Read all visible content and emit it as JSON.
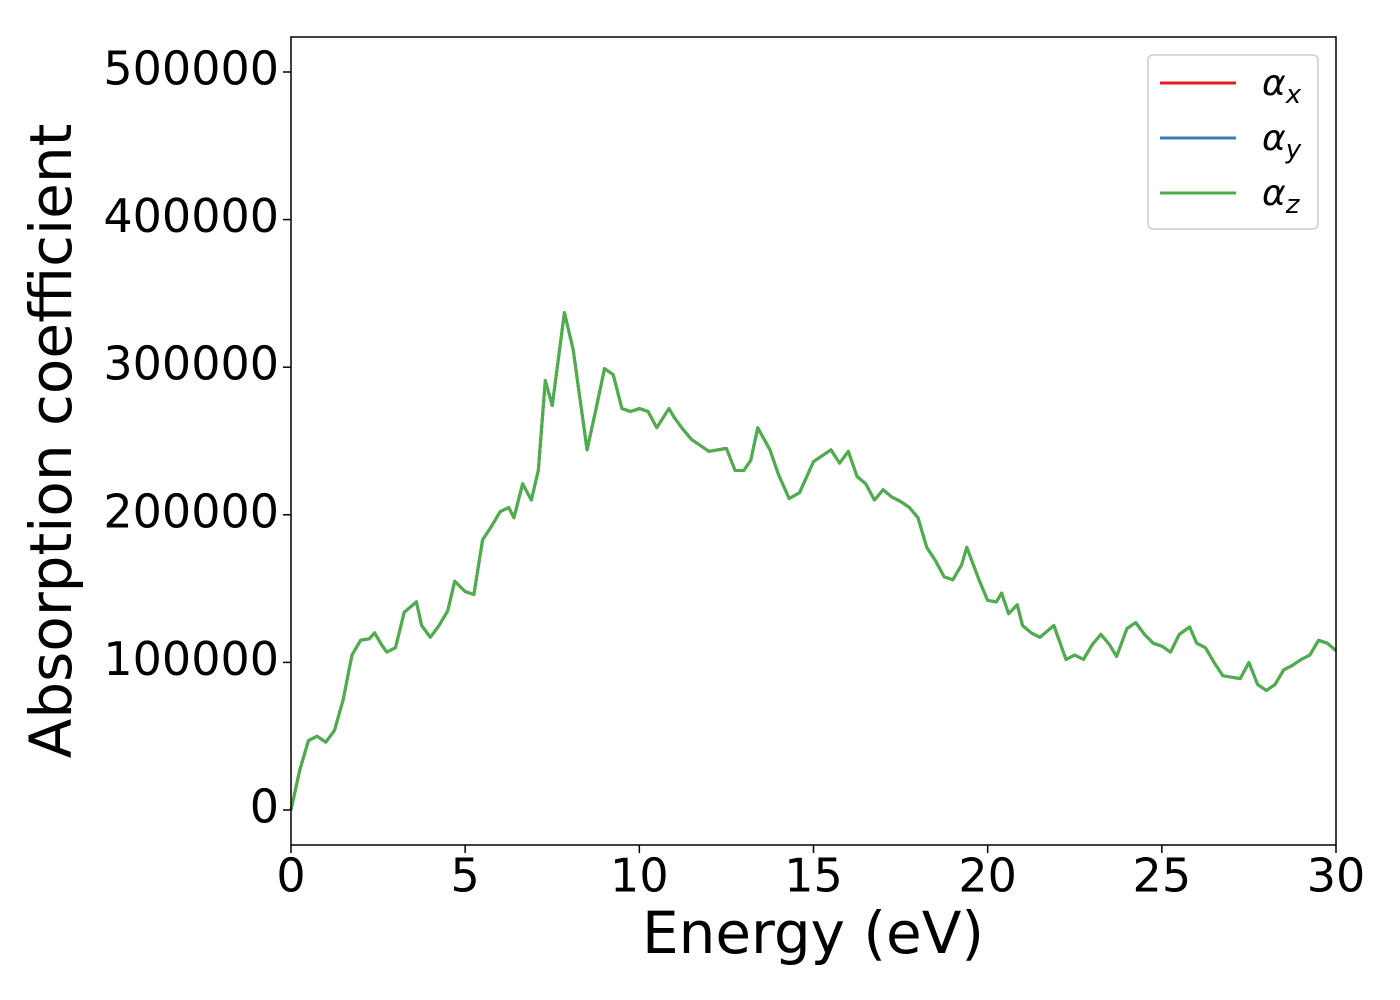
{
  "chart_data": {
    "type": "line",
    "xlabel": "Energy (eV)",
    "ylabel": "Absorption coefficient",
    "x": [
      0,
      0.25,
      0.5,
      0.75,
      1,
      1.25,
      1.5,
      1.75,
      2,
      2.25,
      2.4,
      2.6,
      2.75,
      3,
      3.25,
      3.5,
      3.6,
      3.75,
      4,
      4.25,
      4.5,
      4.7,
      5,
      5.25,
      5.5,
      5.75,
      6,
      6.25,
      6.4,
      6.65,
      6.9,
      7.1,
      7.3,
      7.5,
      7.85,
      8.1,
      8.5,
      8.75,
      9,
      9.25,
      9.5,
      9.75,
      10,
      10.25,
      10.5,
      10.85,
      11,
      11.25,
      11.5,
      11.75,
      12,
      12.25,
      12.5,
      12.75,
      13,
      13.2,
      13.4,
      13.75,
      14,
      14.3,
      14.6,
      15,
      15.25,
      15.5,
      15.75,
      16,
      16.25,
      16.5,
      16.75,
      17,
      17.25,
      17.5,
      17.75,
      18,
      18.25,
      18.5,
      18.75,
      19,
      19.25,
      19.4,
      19.75,
      20,
      20.25,
      20.4,
      20.6,
      20.85,
      21,
      21.25,
      21.5,
      21.9,
      22.25,
      22.5,
      22.75,
      23,
      23.25,
      23.5,
      23.7,
      24,
      24.25,
      24.5,
      24.75,
      25,
      25.25,
      25.5,
      25.8,
      26,
      26.25,
      26.5,
      26.75,
      27,
      27.25,
      27.5,
      27.75,
      28,
      28.25,
      28.5,
      28.75,
      29,
      29.25,
      29.5,
      29.75,
      30
    ],
    "series": [
      {
        "name": "αx",
        "color": "#e41a1c",
        "values": [
          0,
          27000,
          47000,
          50000,
          46000,
          54000,
          75000,
          105000,
          115000,
          116000,
          120000,
          112000,
          107000,
          110000,
          134000,
          139000,
          141000,
          125000,
          117000,
          125000,
          135000,
          155000,
          148000,
          146000,
          183000,
          192000,
          202000,
          205000,
          198000,
          221000,
          210000,
          230000,
          291000,
          274000,
          337000,
          312000,
          244000,
          271000,
          299000,
          295000,
          272000,
          270000,
          272000,
          270000,
          259000,
          272000,
          266000,
          258000,
          251000,
          247000,
          243000,
          244000,
          245000,
          230000,
          230000,
          237000,
          259000,
          244000,
          227000,
          211000,
          215000,
          236000,
          240000,
          244000,
          235000,
          243000,
          226000,
          221000,
          210000,
          217000,
          212000,
          209000,
          205000,
          198000,
          178000,
          169000,
          158000,
          156000,
          166000,
          178000,
          156000,
          142000,
          141000,
          147000,
          133000,
          139000,
          125000,
          120000,
          117000,
          125000,
          102000,
          105000,
          102000,
          112000,
          119000,
          112000,
          104000,
          123000,
          127000,
          119000,
          113000,
          111000,
          107000,
          119000,
          124000,
          113000,
          110000,
          100000,
          91000,
          90000,
          89000,
          100000,
          85000,
          81000,
          85000,
          95000,
          98000,
          102000,
          105000,
          115000,
          113000,
          108000
        ]
      },
      {
        "name": "αy",
        "color": "#377eb8",
        "values": [
          0,
          27000,
          47000,
          50000,
          46000,
          54000,
          75000,
          105000,
          115000,
          116000,
          120000,
          112000,
          107000,
          110000,
          134000,
          139000,
          141000,
          125000,
          117000,
          125000,
          135000,
          155000,
          148000,
          146000,
          183000,
          192000,
          202000,
          205000,
          198000,
          221000,
          210000,
          230000,
          291000,
          274000,
          337000,
          312000,
          244000,
          271000,
          299000,
          295000,
          272000,
          270000,
          272000,
          270000,
          259000,
          272000,
          266000,
          258000,
          251000,
          247000,
          243000,
          244000,
          245000,
          230000,
          230000,
          237000,
          259000,
          244000,
          227000,
          211000,
          215000,
          236000,
          240000,
          244000,
          235000,
          243000,
          226000,
          221000,
          210000,
          217000,
          212000,
          209000,
          205000,
          198000,
          178000,
          169000,
          158000,
          156000,
          166000,
          178000,
          156000,
          142000,
          141000,
          147000,
          133000,
          139000,
          125000,
          120000,
          117000,
          125000,
          102000,
          105000,
          102000,
          112000,
          119000,
          112000,
          104000,
          123000,
          127000,
          119000,
          113000,
          111000,
          107000,
          119000,
          124000,
          113000,
          110000,
          100000,
          91000,
          90000,
          89000,
          100000,
          85000,
          81000,
          85000,
          95000,
          98000,
          102000,
          105000,
          115000,
          113000,
          108000
        ]
      },
      {
        "name": "αz",
        "color": "#4daf4a",
        "values": [
          0,
          27000,
          47000,
          50000,
          46000,
          54000,
          75000,
          105000,
          115000,
          116000,
          120000,
          112000,
          107000,
          110000,
          134000,
          139000,
          141000,
          125000,
          117000,
          125000,
          135000,
          155000,
          148000,
          146000,
          183000,
          192000,
          202000,
          205000,
          198000,
          221000,
          210000,
          230000,
          291000,
          274000,
          337000,
          312000,
          244000,
          271000,
          299000,
          295000,
          272000,
          270000,
          272000,
          270000,
          259000,
          272000,
          266000,
          258000,
          251000,
          247000,
          243000,
          244000,
          245000,
          230000,
          230000,
          237000,
          259000,
          244000,
          227000,
          211000,
          215000,
          236000,
          240000,
          244000,
          235000,
          243000,
          226000,
          221000,
          210000,
          217000,
          212000,
          209000,
          205000,
          198000,
          178000,
          169000,
          158000,
          156000,
          166000,
          178000,
          156000,
          142000,
          141000,
          147000,
          133000,
          139000,
          125000,
          120000,
          117000,
          125000,
          102000,
          105000,
          102000,
          112000,
          119000,
          112000,
          104000,
          123000,
          127000,
          119000,
          113000,
          111000,
          107000,
          119000,
          124000,
          113000,
          110000,
          100000,
          91000,
          90000,
          89000,
          100000,
          85000,
          81000,
          85000,
          95000,
          98000,
          102000,
          105000,
          115000,
          113000,
          108000
        ]
      }
    ],
    "xlim": [
      0,
      30
    ],
    "xticks": [
      0,
      5,
      10,
      15,
      20,
      25,
      30
    ],
    "ylim": [
      -23700,
      523700
    ],
    "yticks": [
      0,
      100000,
      200000,
      300000,
      400000,
      500000
    ],
    "grid": false,
    "legend": "upper right"
  }
}
